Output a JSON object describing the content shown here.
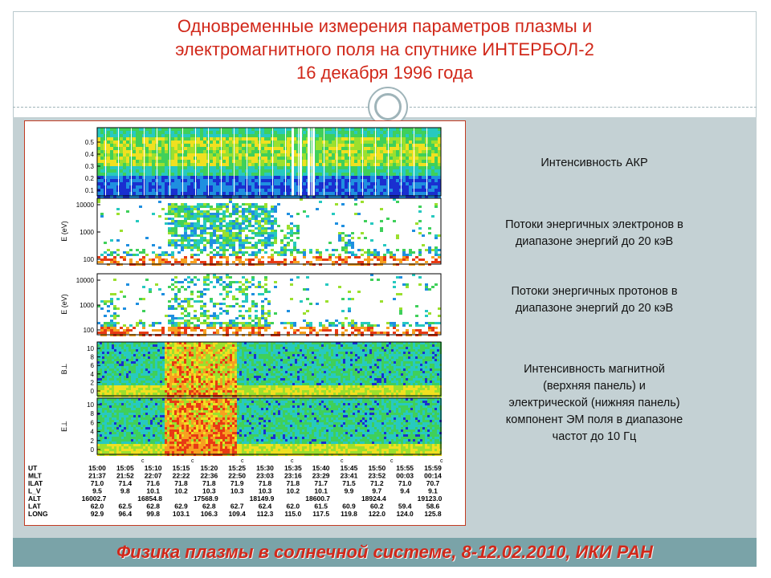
{
  "title_lines": [
    "Одновременные измерения параметров плазмы и",
    "электромагнитного поля на спутнике ИНТЕРБОЛ-2",
    "16 декабря 1996 года"
  ],
  "footer": "Физика плазмы в солнечной системе, 8-12.02.2010, ИКИ РАН",
  "labels": {
    "akr": "Интенсивность АКР",
    "electrons": [
      "Потоки энергичных электронов в",
      "диапазоне энергий до 20 кэВ"
    ],
    "protons": [
      "Потоки энергичных протонов в",
      "диапазоне энергий до 20 кэВ"
    ],
    "em": [
      "Интенсивность магнитной",
      "(верхняя панель) и",
      "электрической (нижняя панель)",
      "компонент ЭМ поля в диапазоне",
      "частот до 10 Гц"
    ]
  },
  "colors": {
    "accent": "#d1281a",
    "panel_bg": "#c4d1d4",
    "footer_bg": "#7aa3a8",
    "figure_border": "#c23b22"
  },
  "chart_data": [
    {
      "type": "heatmap",
      "panel": "akr",
      "y_ticks": [
        "0.5",
        "0.4",
        "0.3",
        "0.2",
        "0.1"
      ]
    },
    {
      "type": "heatmap",
      "panel": "electrons",
      "ylabel": "E (eV)",
      "y_scale": "log",
      "y_ticks": [
        "10000",
        "1000",
        "100"
      ]
    },
    {
      "type": "heatmap",
      "panel": "protons",
      "ylabel": "E (eV)",
      "y_scale": "log",
      "y_ticks": [
        "10000",
        "1000",
        "100"
      ]
    },
    {
      "type": "heatmap",
      "panel": "b_perp",
      "ylabel": "B⊥",
      "y_ticks": [
        "10",
        "8",
        "6",
        "4",
        "2",
        "0"
      ]
    },
    {
      "type": "heatmap",
      "panel": "e_perp",
      "ylabel": "E⊥",
      "y_ticks": [
        "10",
        "8",
        "6",
        "4",
        "2",
        "0"
      ]
    },
    {
      "type": "table",
      "panel": "orbit",
      "rows": [
        {
          "name": "UT",
          "values": [
            "15:00",
            "15:05",
            "15:10",
            "15:15",
            "15:20",
            "15:25",
            "15:30",
            "15:35",
            "15:40",
            "15:45",
            "15:50",
            "15:55",
            "15:59"
          ]
        },
        {
          "name": "MLT",
          "values": [
            "21:37",
            "21:52",
            "22:07",
            "22:22",
            "22:36",
            "22:50",
            "23:03",
            "23:16",
            "23:29",
            "23:41",
            "23:52",
            "00:03",
            "00:14"
          ]
        },
        {
          "name": "ILAT",
          "values": [
            "71.0",
            "71.4",
            "71.6",
            "71.8",
            "71.8",
            "71.9",
            "71.8",
            "71.8",
            "71.7",
            "71.5",
            "71.2",
            "71.0",
            "70.7"
          ]
        },
        {
          "name": "L_V",
          "values": [
            "9.5",
            "9.8",
            "10.1",
            "10.2",
            "10.3",
            "10.3",
            "10.3",
            "10.2",
            "10.1",
            "9.9",
            "9.7",
            "9.4",
            "9.1"
          ]
        },
        {
          "name": "ALT",
          "values": [
            "16002.7",
            "",
            "16854.8",
            "",
            "17568.9",
            "",
            "18149.9",
            "",
            "18600.7",
            "",
            "18924.4",
            "",
            "19123.0"
          ]
        },
        {
          "name": "LAT",
          "values": [
            "62.0",
            "62.5",
            "62.8",
            "62.9",
            "62.8",
            "62.7",
            "62.4",
            "62.0",
            "61.5",
            "60.9",
            "60.2",
            "59.4",
            "58.6"
          ]
        },
        {
          "name": "LONG",
          "values": [
            "92.9",
            "96.4",
            "99.8",
            "103.1",
            "106.3",
            "109.4",
            "112.3",
            "115.0",
            "117.5",
            "119.8",
            "122.0",
            "124.0",
            "125.8"
          ]
        }
      ]
    }
  ]
}
